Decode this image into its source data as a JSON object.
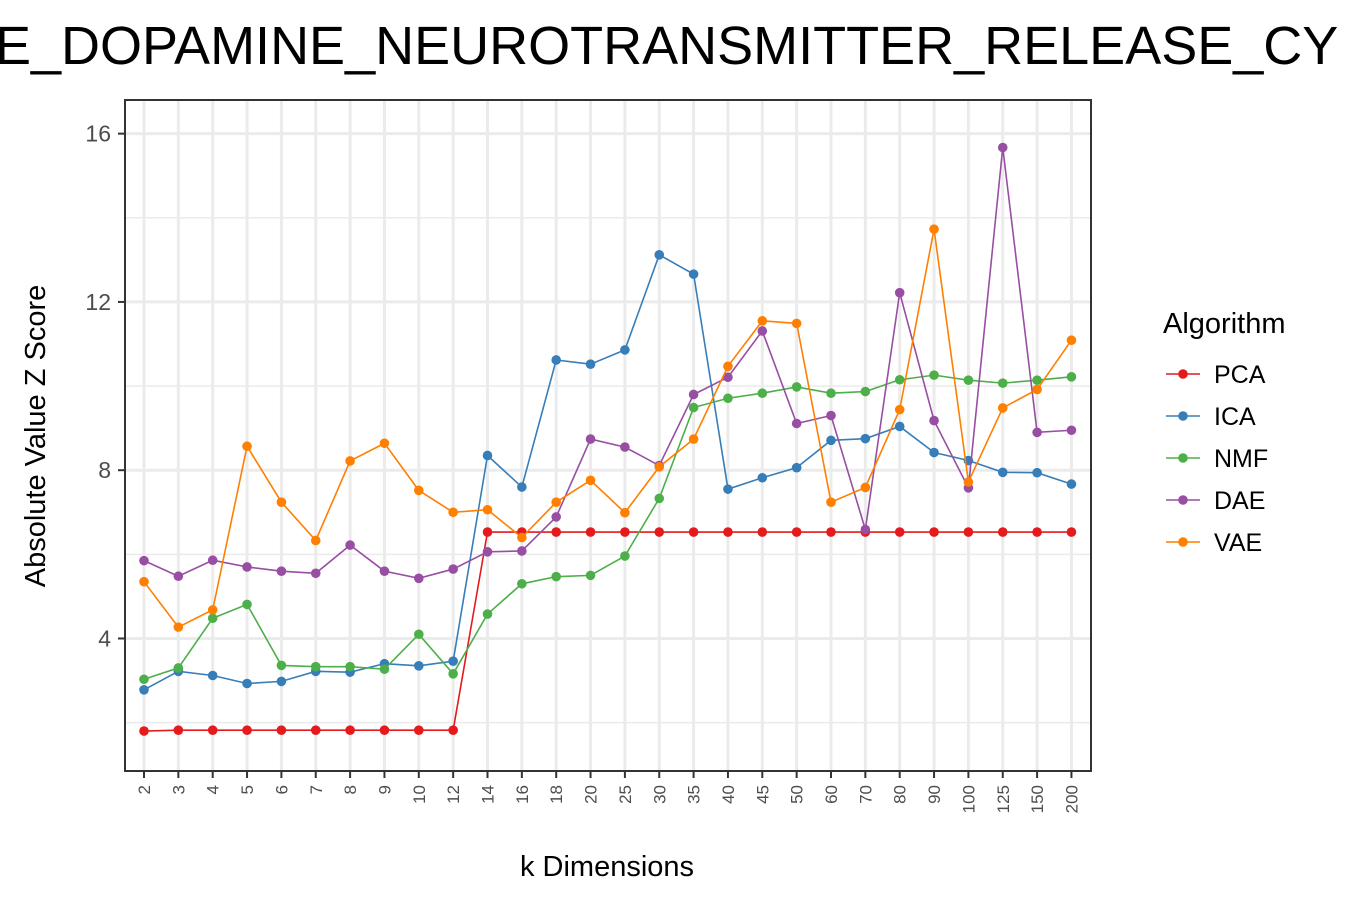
{
  "chart_data": {
    "type": "line",
    "title": "E_DOPAMINE_NEUROTRANSMITTER_RELEASE_CY",
    "xlabel": "k Dimensions",
    "ylabel": "Absolute Value Z Score",
    "ylim": [
      0.85,
      16.8
    ],
    "yticks": [
      4,
      8,
      12,
      16
    ],
    "grid": true,
    "legend_title": "Algorithm",
    "legend_position": "right",
    "categories": [
      "2",
      "3",
      "4",
      "5",
      "6",
      "7",
      "8",
      "9",
      "10",
      "12",
      "14",
      "16",
      "18",
      "20",
      "25",
      "30",
      "35",
      "40",
      "45",
      "50",
      "60",
      "70",
      "80",
      "90",
      "100",
      "125",
      "150",
      "200"
    ],
    "series": [
      {
        "name": "PCA",
        "color": "#E41A1C",
        "values": [
          1.8,
          1.82,
          1.82,
          1.82,
          1.82,
          1.82,
          1.82,
          1.82,
          1.82,
          1.82,
          6.53,
          6.53,
          6.53,
          6.53,
          6.53,
          6.53,
          6.53,
          6.53,
          6.53,
          6.53,
          6.53,
          6.53,
          6.53,
          6.53,
          6.53,
          6.53,
          6.53,
          6.53
        ]
      },
      {
        "name": "ICA",
        "color": "#377EB8",
        "values": [
          2.78,
          3.22,
          3.12,
          2.93,
          2.98,
          3.22,
          3.2,
          3.4,
          3.35,
          3.46,
          8.35,
          7.6,
          10.62,
          10.52,
          10.86,
          13.12,
          12.66,
          7.55,
          7.82,
          8.06,
          8.71,
          8.75,
          9.04,
          8.42,
          8.23,
          7.95,
          7.94,
          7.67
        ]
      },
      {
        "name": "NMF",
        "color": "#4DAF4A",
        "values": [
          3.03,
          3.3,
          4.48,
          4.81,
          3.36,
          3.33,
          3.33,
          3.27,
          4.1,
          3.16,
          4.58,
          5.3,
          5.47,
          5.5,
          5.96,
          7.33,
          9.49,
          9.71,
          9.83,
          9.98,
          9.83,
          9.87,
          10.15,
          10.26,
          10.14,
          10.07,
          10.14,
          10.22
        ]
      },
      {
        "name": "DAE",
        "color": "#984EA3",
        "values": [
          5.85,
          5.48,
          5.86,
          5.7,
          5.6,
          5.55,
          6.22,
          5.6,
          5.43,
          5.65,
          6.06,
          6.08,
          6.89,
          8.74,
          8.55,
          8.11,
          9.8,
          10.21,
          11.31,
          9.11,
          9.3,
          6.59,
          12.22,
          9.18,
          7.58,
          15.67,
          8.9,
          8.95
        ]
      },
      {
        "name": "VAE",
        "color": "#FF7F00",
        "values": [
          5.35,
          4.27,
          4.68,
          8.57,
          7.24,
          6.33,
          8.22,
          8.64,
          7.52,
          7.0,
          7.06,
          6.4,
          7.24,
          7.76,
          6.99,
          8.08,
          8.74,
          10.47,
          11.55,
          11.49,
          7.24,
          7.59,
          9.44,
          13.73,
          7.72,
          9.48,
          9.92,
          11.09
        ]
      }
    ]
  }
}
